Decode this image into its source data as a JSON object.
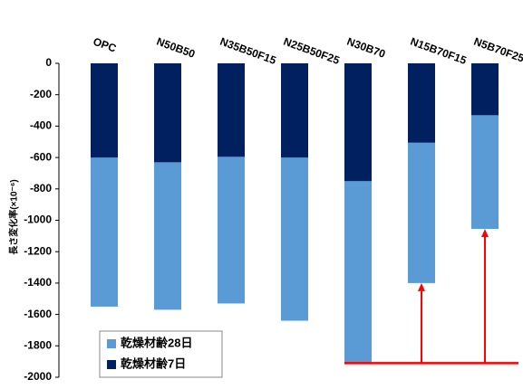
{
  "chart_data": {
    "type": "bar",
    "barmode": "overlay",
    "y_label": "長さ変化率(×10⁻⁶)",
    "categories": [
      "OPC",
      "N50B50",
      "N35B50F15",
      "N25B50F25",
      "N30B70",
      "N15B70F15",
      "N5B70F25"
    ],
    "series": [
      {
        "name": "乾燥材齢28日",
        "color": "#5b9bd5",
        "values": [
          -1550,
          -1570,
          -1530,
          -1640,
          -1910,
          -1400,
          -1055
        ]
      },
      {
        "name": "乾燥材齢7日",
        "color": "#002060",
        "values": [
          -600,
          -630,
          -595,
          -600,
          -750,
          -505,
          -330
        ]
      }
    ],
    "ylim": [
      -2000,
      0
    ],
    "yticks": [
      0,
      -200,
      -400,
      -600,
      -800,
      -1000,
      -1200,
      -1400,
      -1600,
      -1800,
      -2000
    ],
    "annotation_color": "#ff0000"
  }
}
